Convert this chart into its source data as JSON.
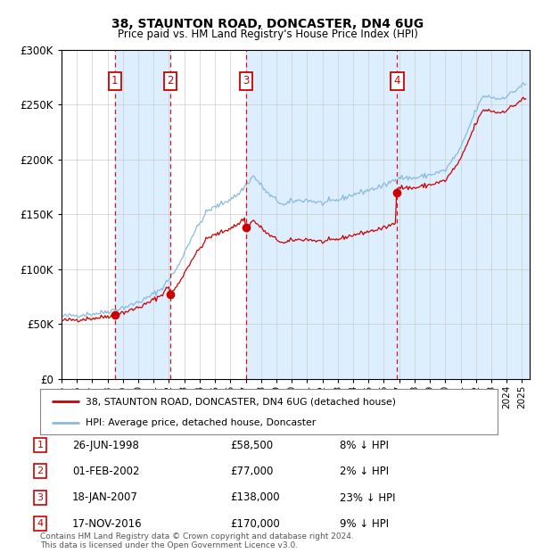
{
  "title1": "38, STAUNTON ROAD, DONCASTER, DN4 6UG",
  "title2": "Price paid vs. HM Land Registry's House Price Index (HPI)",
  "legend_line1": "38, STAUNTON ROAD, DONCASTER, DN4 6UG (detached house)",
  "legend_line2": "HPI: Average price, detached house, Doncaster",
  "footer1": "Contains HM Land Registry data © Crown copyright and database right 2024.",
  "footer2": "This data is licensed under the Open Government Licence v3.0.",
  "purchases": [
    {
      "num": 1,
      "date": "26-JUN-1998",
      "price": 58500,
      "pct": "8%",
      "dir": "↓",
      "year_x": 1998.48
    },
    {
      "num": 2,
      "date": "01-FEB-2002",
      "price": 77000,
      "pct": "2%",
      "dir": "↓",
      "year_x": 2002.08
    },
    {
      "num": 3,
      "date": "18-JAN-2007",
      "price": 138000,
      "pct": "23%",
      "dir": "↓",
      "year_x": 2007.04
    },
    {
      "num": 4,
      "date": "17-NOV-2016",
      "price": 170000,
      "pct": "9%",
      "dir": "↓",
      "year_x": 2016.87
    }
  ],
  "ylim": [
    0,
    300000
  ],
  "xlim_start": 1995.0,
  "xlim_end": 2025.5,
  "hpi_color": "#88bbdd",
  "price_color": "#cc0000",
  "dot_color": "#cc0000",
  "shading_color": "#ddeeff",
  "vline_color": "#cc0000",
  "bg_color": "#ffffff",
  "grid_color": "#cccccc",
  "label_num_box_color": "#cc0000",
  "yticks": [
    0,
    50000,
    100000,
    150000,
    200000,
    250000,
    300000
  ]
}
